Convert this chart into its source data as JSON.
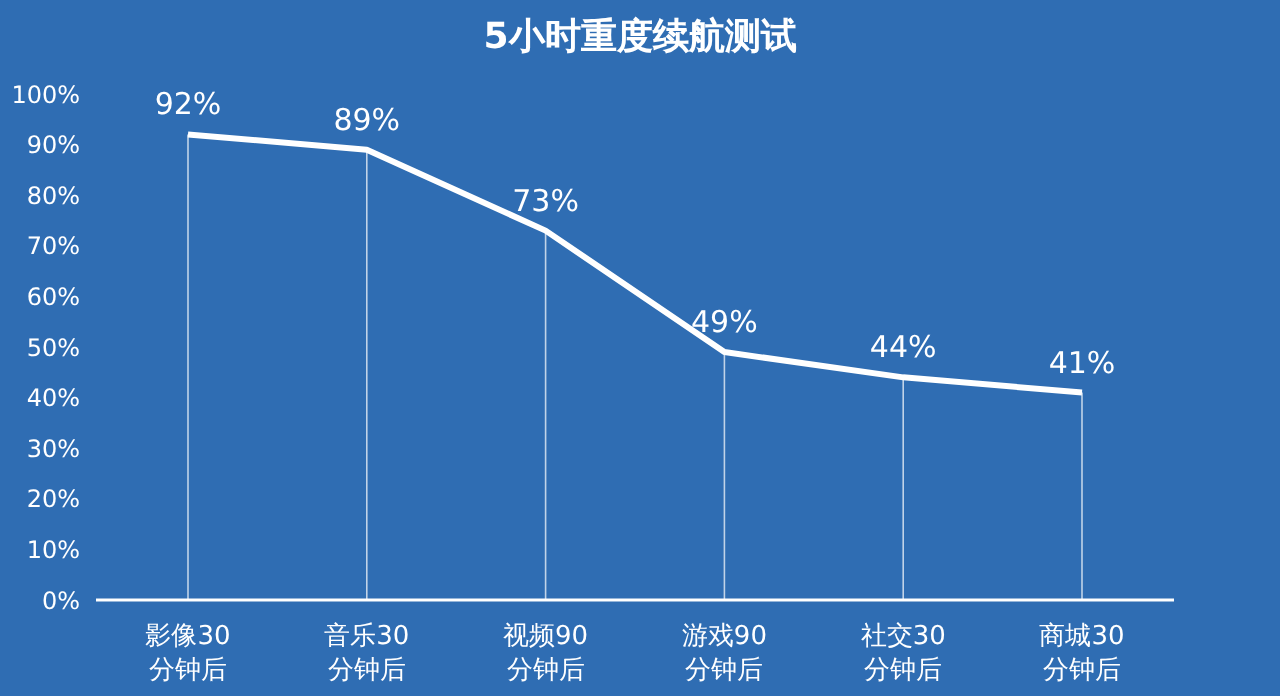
{
  "chart_data": {
    "type": "line",
    "title": "5小时重度续航测试",
    "categories": [
      "影像30分钟后",
      "音乐30分钟后",
      "视频90分钟后",
      "游戏90分钟后",
      "社交30分钟后",
      "商城30分钟后"
    ],
    "series": [
      {
        "color": "#ffffff",
        "values": [
          92,
          89,
          73,
          49,
          44,
          41
        ],
        "value_labels": [
          "92%",
          "89%",
          "73%",
          "49%",
          "44%",
          "41%"
        ]
      }
    ],
    "ylim": [
      0,
      100
    ],
    "yticks": [
      {
        "value": 0,
        "label": "0%"
      },
      {
        "value": 10,
        "label": "10%"
      },
      {
        "value": 20,
        "label": "20%"
      },
      {
        "value": 30,
        "label": "30%"
      },
      {
        "value": 40,
        "label": "40%"
      },
      {
        "value": 50,
        "label": "50%"
      },
      {
        "value": 60,
        "label": "60%"
      },
      {
        "value": 70,
        "label": "70%"
      },
      {
        "value": 80,
        "label": "80%"
      },
      {
        "value": 90,
        "label": "90%"
      },
      {
        "value": 100,
        "label": "100%"
      }
    ],
    "grid": "x",
    "legend": false
  }
}
